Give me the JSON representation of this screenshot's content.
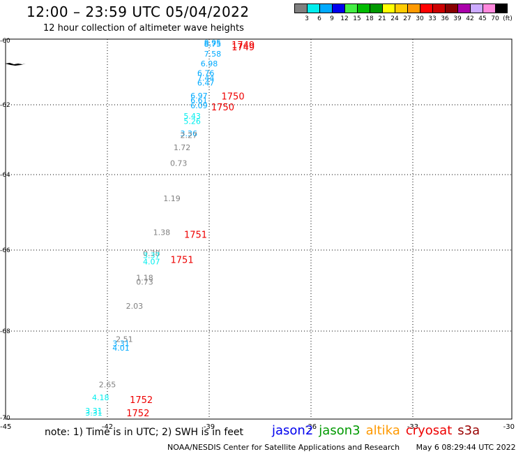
{
  "title": "12:00 – 23:59 UTC 05/04/2022",
  "subtitle": "12 hour collection of altimeter wave heights",
  "legend": {
    "colors": [
      "#808080",
      "#00eeee",
      "#00aaff",
      "#0000ee",
      "#44ee44",
      "#00bb00",
      "#009900",
      "#ffff00",
      "#ffcc00",
      "#ff9900",
      "#ff0000",
      "#cc0000",
      "#880000",
      "#aa00aa",
      "#ccaaff",
      "#ff88dd",
      "#000000"
    ],
    "labels": [
      "3",
      "6",
      "9",
      "12",
      "15",
      "18",
      "21",
      "24",
      "27",
      "30",
      "33",
      "36",
      "39",
      "42",
      "45",
      "70",
      "(ft)"
    ]
  },
  "axes": {
    "lon_ticks": [
      "-45",
      "-42",
      "-39",
      "-36",
      "-33",
      "-30"
    ],
    "lat_ticks": [
      "-60",
      "-62",
      "-64",
      "-66",
      "-68",
      "-70"
    ]
  },
  "swh_labels": [
    {
      "text": "8.95",
      "color": "#00aaff",
      "lon": -38.9,
      "lat": -60.15
    },
    {
      "text": "8.75",
      "color": "#00aaff",
      "lon": -38.9,
      "lat": -60.2
    },
    {
      "text": "7.58",
      "color": "#00aaff",
      "lon": -38.9,
      "lat": -60.5
    },
    {
      "text": "6.98",
      "color": "#00aaff",
      "lon": -39.0,
      "lat": -60.8
    },
    {
      "text": "6.76",
      "color": "#00aaff",
      "lon": -39.1,
      "lat": -61.1
    },
    {
      "text": "7.44",
      "color": "#00aaff",
      "lon": -39.1,
      "lat": -61.25
    },
    {
      "text": "6.47",
      "color": "#00aaff",
      "lon": -39.1,
      "lat": -61.4
    },
    {
      "text": "6.97",
      "color": "#00aaff",
      "lon": -39.3,
      "lat": -61.8
    },
    {
      "text": "6.61",
      "color": "#00aaff",
      "lon": -39.3,
      "lat": -61.95
    },
    {
      "text": "6.09",
      "color": "#00aaff",
      "lon": -39.3,
      "lat": -62.1
    },
    {
      "text": "5.43",
      "color": "#00eeee",
      "lon": -39.5,
      "lat": -62.4
    },
    {
      "text": "5.26",
      "color": "#00eeee",
      "lon": -39.5,
      "lat": -62.55
    },
    {
      "text": "3.36",
      "color": "#00aaff",
      "lon": -39.6,
      "lat": -62.9
    },
    {
      "text": "2.27",
      "color": "#808080",
      "lon": -39.6,
      "lat": -62.95
    },
    {
      "text": "1.72",
      "color": "#808080",
      "lon": -39.8,
      "lat": -63.3
    },
    {
      "text": "0.73",
      "color": "#808080",
      "lon": -39.9,
      "lat": -63.75
    },
    {
      "text": "1.19",
      "color": "#808080",
      "lon": -40.1,
      "lat": -64.7
    },
    {
      "text": "1.38",
      "color": "#808080",
      "lon": -40.4,
      "lat": -65.6
    },
    {
      "text": "0.38",
      "color": "#808080",
      "lon": -40.7,
      "lat": -66.15
    },
    {
      "text": "3.37",
      "color": "#00eeee",
      "lon": -40.7,
      "lat": -66.2
    },
    {
      "text": "4.07",
      "color": "#00eeee",
      "lon": -40.7,
      "lat": -66.35
    },
    {
      "text": "1.18",
      "color": "#808080",
      "lon": -40.9,
      "lat": -66.75
    },
    {
      "text": "0.73",
      "color": "#808080",
      "lon": -40.9,
      "lat": -66.85
    },
    {
      "text": "2.03",
      "color": "#808080",
      "lon": -41.2,
      "lat": -67.45
    },
    {
      "text": "2.51",
      "color": "#808080",
      "lon": -41.5,
      "lat": -68.25
    },
    {
      "text": "3.31",
      "color": "#00aaff",
      "lon": -41.6,
      "lat": -68.35
    },
    {
      "text": "4.01",
      "color": "#00aaff",
      "lon": -41.6,
      "lat": -68.45
    },
    {
      "text": "2.65",
      "color": "#808080",
      "lon": -42.0,
      "lat": -69.3
    },
    {
      "text": "4.18",
      "color": "#00eeee",
      "lon": -42.2,
      "lat": -69.6
    },
    {
      "text": "3.31",
      "color": "#00eeee",
      "lon": -42.4,
      "lat": -69.9
    },
    {
      "text": "3.31",
      "color": "#00eeee",
      "lon": -42.4,
      "lat": -69.95
    }
  ],
  "time_labels": [
    {
      "text": "1749",
      "lon": -38.0,
      "lat": -60.15
    },
    {
      "text": "1749",
      "lon": -38.0,
      "lat": -60.22
    },
    {
      "text": "1750",
      "lon": -38.3,
      "lat": -61.75
    },
    {
      "text": "1750",
      "lon": -38.6,
      "lat": -62.08
    },
    {
      "text": "1751",
      "lon": -39.4,
      "lat": -65.6
    },
    {
      "text": "1751",
      "lon": -39.8,
      "lat": -66.25
    },
    {
      "text": "1752",
      "lon": -41.0,
      "lat": -69.6
    },
    {
      "text": "1752",
      "lon": -41.1,
      "lat": -69.9
    }
  ],
  "note": "note:  1) Time is in UTC;  2) SWH is in feet",
  "satellites": [
    {
      "name": "jason2",
      "color": "#0000ee"
    },
    {
      "name": "jason3",
      "color": "#009900"
    },
    {
      "name": "altika",
      "color": "#ff9900"
    },
    {
      "name": "cryosat",
      "color": "#ee0000"
    },
    {
      "name": "s3a",
      "color": "#990000"
    }
  ],
  "footer": {
    "org": "NOAA/NESDIS Center for Satellite Applications and Research",
    "timestamp": "May  6 08:29:44 UTC 2022"
  }
}
